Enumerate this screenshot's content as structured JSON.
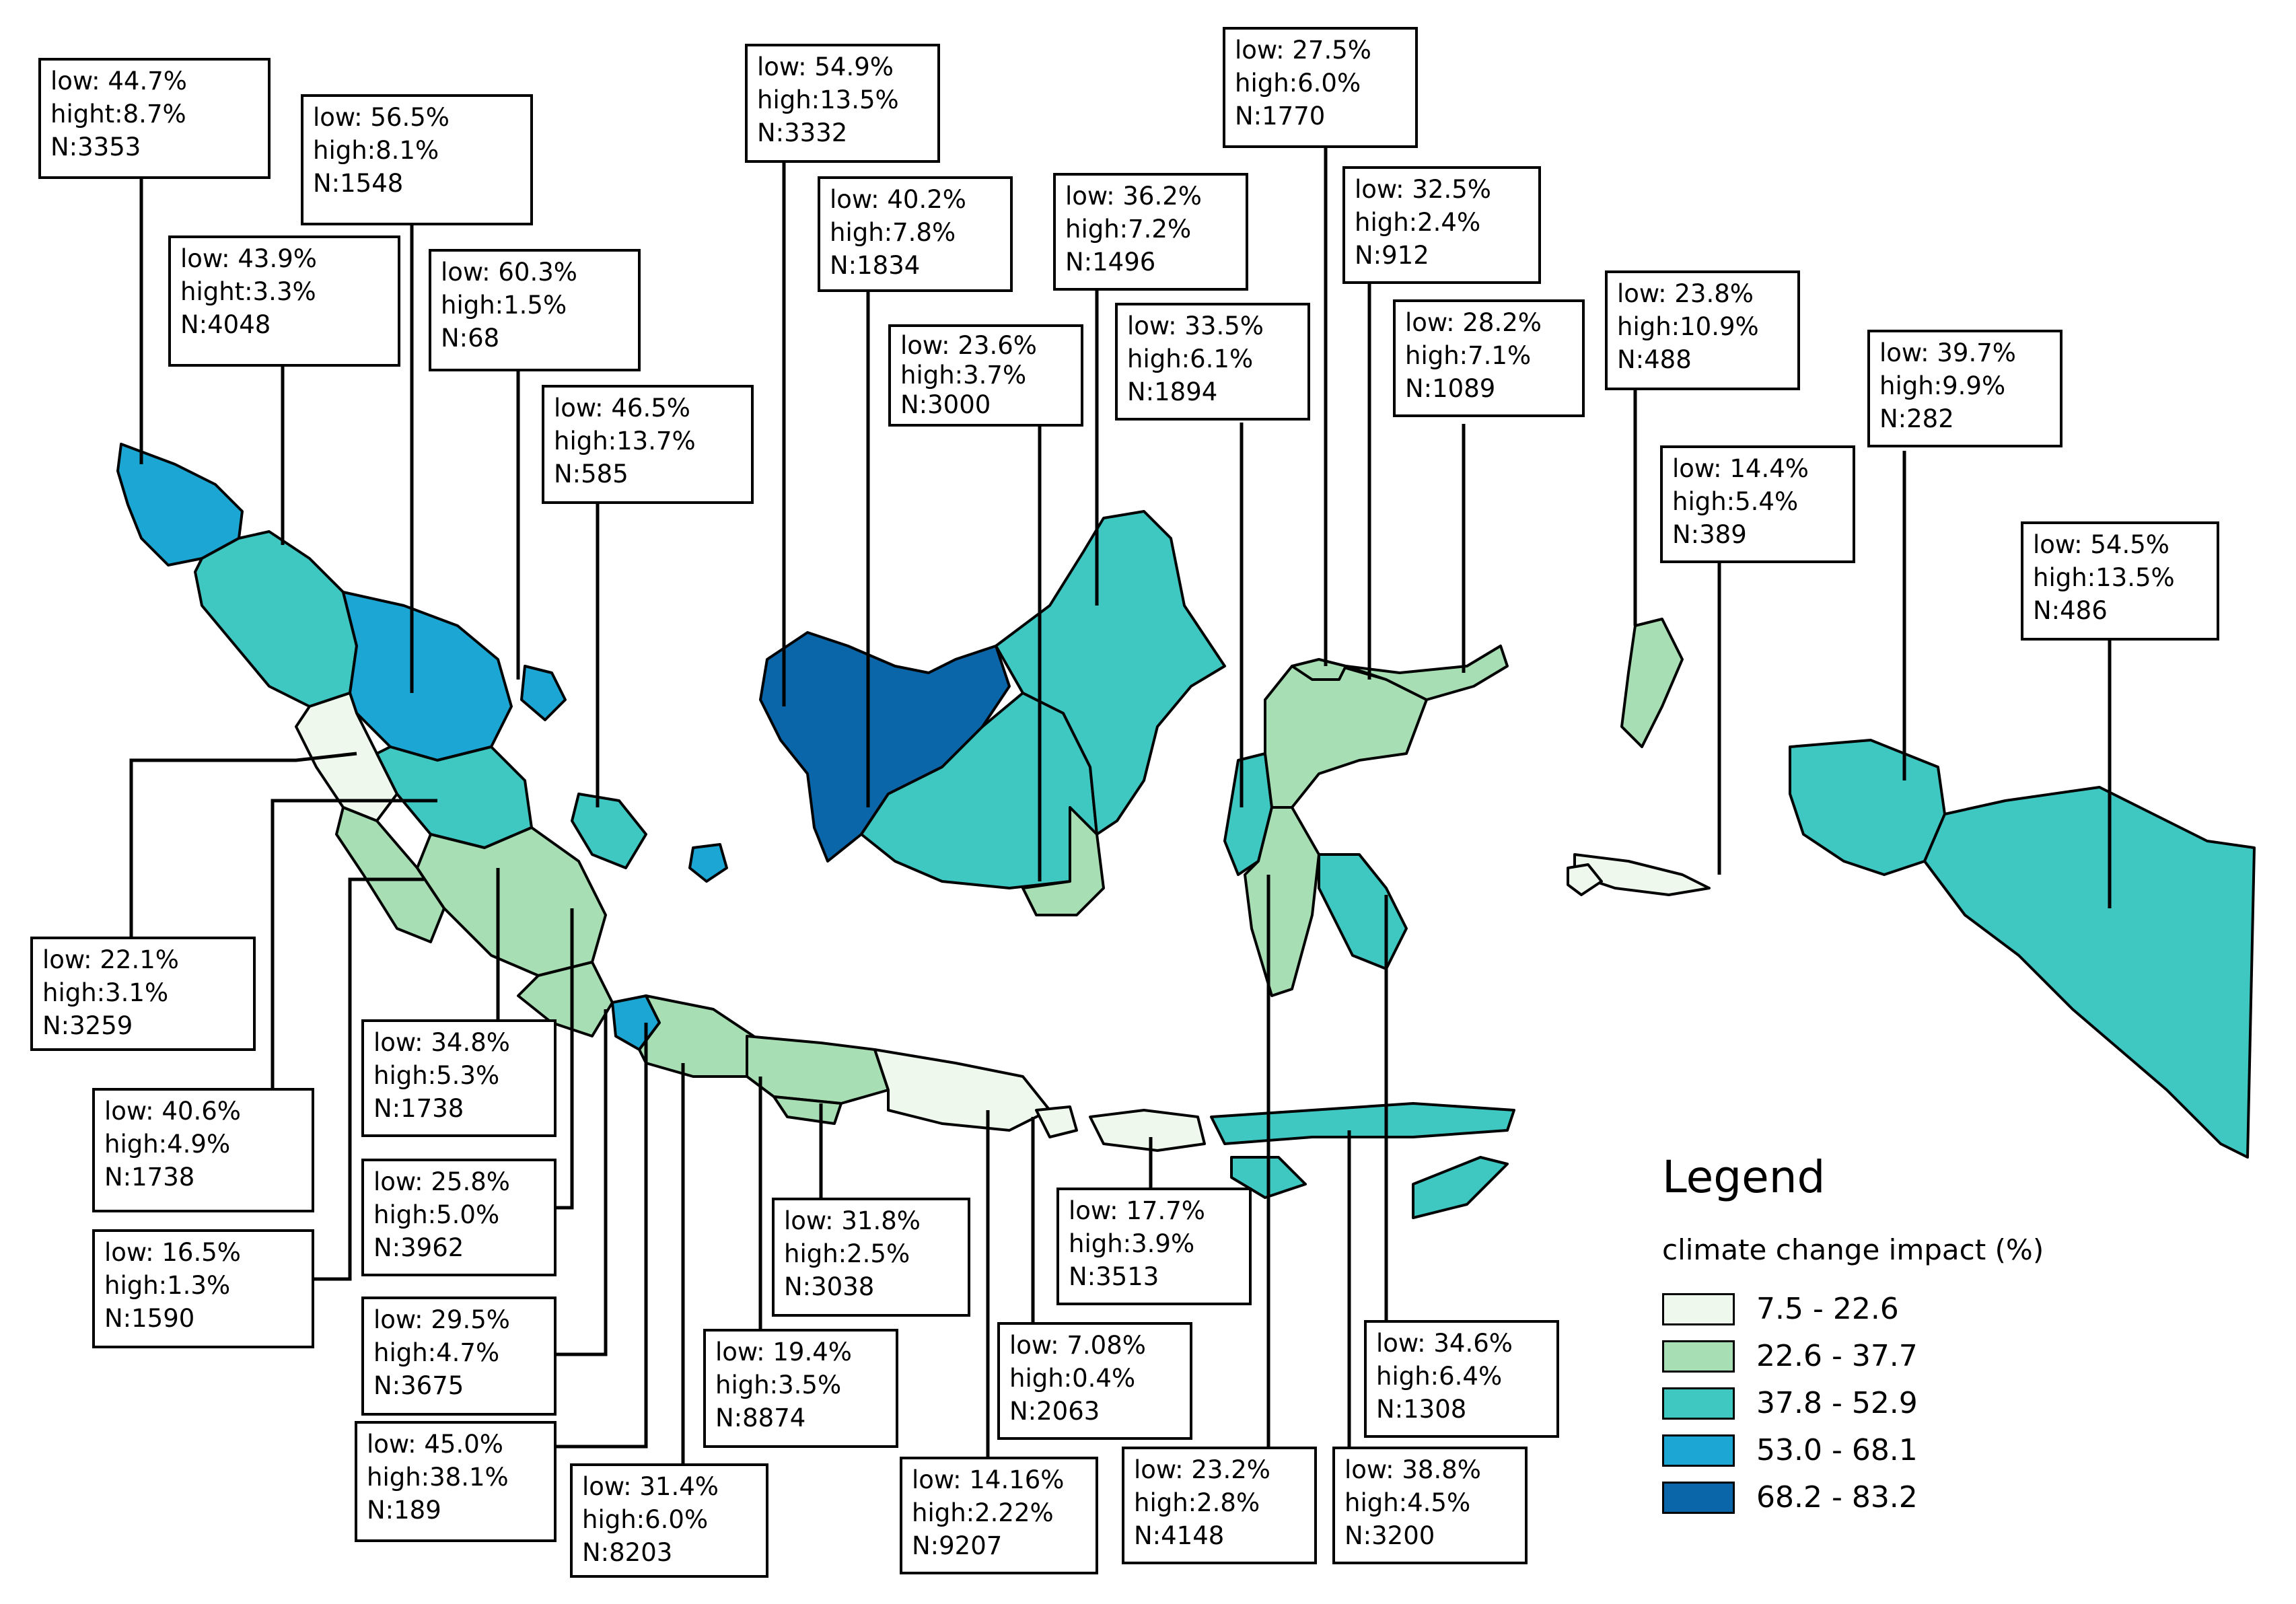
{
  "legend": {
    "title": "Legend",
    "subtitle": "climate change impact (%)",
    "classes": [
      {
        "label": "7.5 - 22.6",
        "color": "#eef8ec"
      },
      {
        "label": "22.6 - 37.7",
        "color": "#a8deb3"
      },
      {
        "label": "37.8 - 52.9",
        "color": "#3fc7c2"
      },
      {
        "label": "53.0 - 68.1",
        "color": "#1ca6d3"
      },
      {
        "label": "68.2 - 83.2",
        "color": "#0a66a8"
      }
    ]
  },
  "provinces": [
    {
      "id": "aceh",
      "low": "low: 44.7%",
      "high": "hight:8.7%",
      "n": "N:3353",
      "class": 3
    },
    {
      "id": "north-sumatra",
      "low": "low: 43.9%",
      "high": "hight:3.3%",
      "n": "N:4048",
      "class": 2
    },
    {
      "id": "riau",
      "low": "low: 56.5%",
      "high": "high:8.1%",
      "n": "N:1548",
      "class": 3
    },
    {
      "id": "riau-islands",
      "low": "low: 60.3%",
      "high": "high:1.5%",
      "n": "N:68",
      "class": 3
    },
    {
      "id": "bangka-belitung",
      "low": "low: 46.5%",
      "high": "high:13.7%",
      "n": "N:585",
      "class": 2
    },
    {
      "id": "west-kalimantan",
      "low": "low: 54.9%",
      "high": "high:13.5%",
      "n": "N:3332",
      "class": 4
    },
    {
      "id": "central-kalimantan",
      "low": "low: 40.2%",
      "high": "high:7.8%",
      "n": "N:1834",
      "class": 2
    },
    {
      "id": "south-kalimantan",
      "low": "low: 23.6%",
      "high": "high:3.7%",
      "n": "N:3000",
      "class": 1
    },
    {
      "id": "east-kalimantan",
      "low": "low: 36.2%",
      "high": "high:7.2%",
      "n": "N:1496",
      "class": 2
    },
    {
      "id": "west-sulawesi",
      "low": "low: 33.5%",
      "high": "high:6.1%",
      "n": "N:1894",
      "class": 2
    },
    {
      "id": "gorontalo",
      "low": "low: 27.5%",
      "high": "high:6.0%",
      "n": "N:1770",
      "class": 1
    },
    {
      "id": "central-sulawesi",
      "low": "low: 32.5%",
      "high": "high:2.4%",
      "n": "N:912",
      "class": 1
    },
    {
      "id": "north-sulawesi",
      "low": "low: 28.2%",
      "high": "high:7.1%",
      "n": "N:1089",
      "class": 1
    },
    {
      "id": "north-maluku",
      "low": "low: 23.8%",
      "high": "high:10.9%",
      "n": "N:488",
      "class": 1
    },
    {
      "id": "west-papua",
      "low": "low: 39.7%",
      "high": "high:9.9%",
      "n": "N:282",
      "class": 2
    },
    {
      "id": "maluku",
      "low": "low: 14.4%",
      "high": "high:5.4%",
      "n": "N:389",
      "class": 0
    },
    {
      "id": "papua",
      "low": "low: 54.5%",
      "high": "high:13.5%",
      "n": "N:486",
      "class": 2
    },
    {
      "id": "west-sumatra",
      "low": "low: 22.1%",
      "high": "high:3.1%",
      "n": "N:3259",
      "class": 0
    },
    {
      "id": "jambi",
      "low": "low: 34.8%",
      "high": "high:5.3%",
      "n": "N:1738",
      "class": 2
    },
    {
      "id": "bengkulu",
      "low": "low: 40.6%",
      "high": "high:4.9%",
      "n": "N:1738",
      "class": 1
    },
    {
      "id": "south-sumatra",
      "low": "low: 25.8%",
      "high": "high:5.0%",
      "n": "N:3962",
      "class": 1
    },
    {
      "id": "lampung-coast",
      "low": "low: 16.5%",
      "high": "high:1.3%",
      "n": "N:1590",
      "class": 0
    },
    {
      "id": "lampung",
      "low": "low: 29.5%",
      "high": "high:4.7%",
      "n": "N:3675",
      "class": 1
    },
    {
      "id": "banten",
      "low": "low: 45.0%",
      "high": "high:38.1%",
      "n": "N:189",
      "class": 3
    },
    {
      "id": "west-java",
      "low": "low: 31.4%",
      "high": "high:6.0%",
      "n": "N:8203",
      "class": 1
    },
    {
      "id": "central-java",
      "low": "low: 19.4%",
      "high": "high:3.5%",
      "n": "N:8874",
      "class": 1
    },
    {
      "id": "yogyakarta",
      "low": "low: 31.8%",
      "high": "high:2.5%",
      "n": "N:3038",
      "class": 1
    },
    {
      "id": "bali",
      "low": "low: 7.08%",
      "high": "high:0.4%",
      "n": "N:2063",
      "class": 0
    },
    {
      "id": "east-java",
      "low": "low: 14.16%",
      "high": "high:2.22%",
      "n": "N:9207",
      "class": 0
    },
    {
      "id": "west-nusa-tenggara",
      "low": "low: 17.7%",
      "high": "high:3.9%",
      "n": "N:3513",
      "class": 0
    },
    {
      "id": "south-sulawesi",
      "low": "low: 23.2%",
      "high": "high:2.8%",
      "n": "N:4148",
      "class": 1
    },
    {
      "id": "east-nusa-tenggara",
      "low": "low: 38.8%",
      "high": "high:4.5%",
      "n": "N:3200",
      "class": 2
    },
    {
      "id": "southeast-sulawesi",
      "low": "low: 34.6%",
      "high": "high:6.4%",
      "n": "N:1308",
      "class": 2
    }
  ]
}
